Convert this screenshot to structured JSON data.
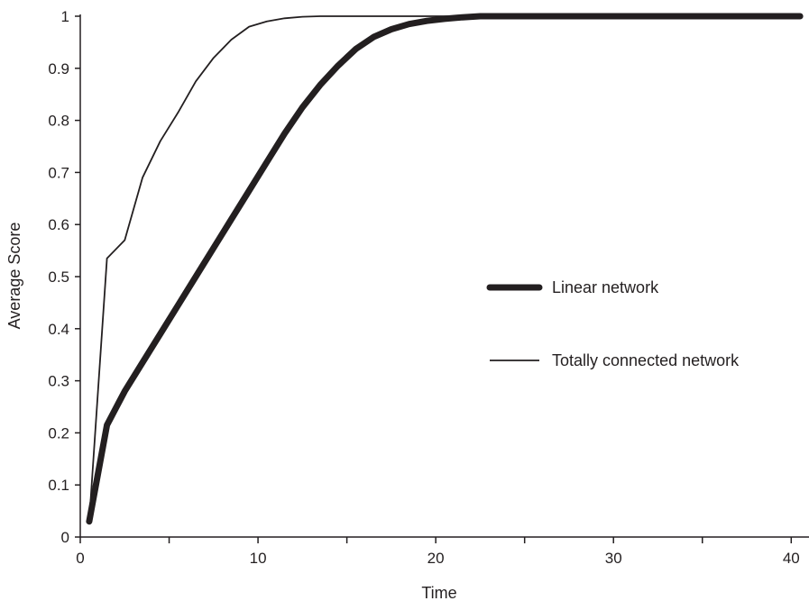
{
  "chart_data": {
    "type": "line",
    "title": "",
    "xlabel": "Time",
    "ylabel": "Average Score",
    "xlim": [
      0,
      41
    ],
    "ylim": [
      0,
      1
    ],
    "x_ticks": [
      0,
      10,
      20,
      30,
      40
    ],
    "x_minor_ticks": [
      5,
      15,
      25,
      35
    ],
    "y_ticks": [
      0,
      0.1,
      0.2,
      0.3,
      0.4,
      0.5,
      0.6,
      0.7,
      0.8,
      0.9,
      1
    ],
    "y_tick_labels": [
      "0",
      "0.1",
      "0.2",
      "0.3",
      "0.4",
      "0.5",
      "0.6",
      "0.7",
      "0.8",
      "0.9",
      "1"
    ],
    "grid": false,
    "legend_position": "right",
    "line_color": "#231f20",
    "series": [
      {
        "name": "Linear network",
        "style": "thick",
        "x": [
          0.5,
          1.5,
          2.5,
          3.5,
          4.5,
          5.5,
          6.5,
          7.5,
          8.5,
          9.5,
          10.5,
          11.5,
          12.5,
          13.5,
          14.5,
          15.5,
          16.5,
          17.5,
          18.5,
          19.5,
          20.5,
          21.5,
          22.5,
          23.5,
          30,
          40.5
        ],
        "y": [
          0.03,
          0.215,
          0.28,
          0.335,
          0.39,
          0.445,
          0.5,
          0.555,
          0.61,
          0.665,
          0.72,
          0.775,
          0.825,
          0.868,
          0.905,
          0.937,
          0.96,
          0.975,
          0.985,
          0.991,
          0.995,
          0.998,
          1.0,
          1.0,
          1.0,
          1.0
        ]
      },
      {
        "name": "Totally connected network",
        "style": "thin",
        "x": [
          0.5,
          1.5,
          2.5,
          3.5,
          4.5,
          5.5,
          6.5,
          7.5,
          8.5,
          9.5,
          10.5,
          11.5,
          12.5,
          13.5,
          20,
          30,
          40.5
        ],
        "y": [
          0.03,
          0.535,
          0.57,
          0.69,
          0.76,
          0.815,
          0.875,
          0.92,
          0.955,
          0.98,
          0.99,
          0.996,
          0.999,
          1.0,
          1.0,
          1.0,
          1.0
        ]
      }
    ]
  }
}
